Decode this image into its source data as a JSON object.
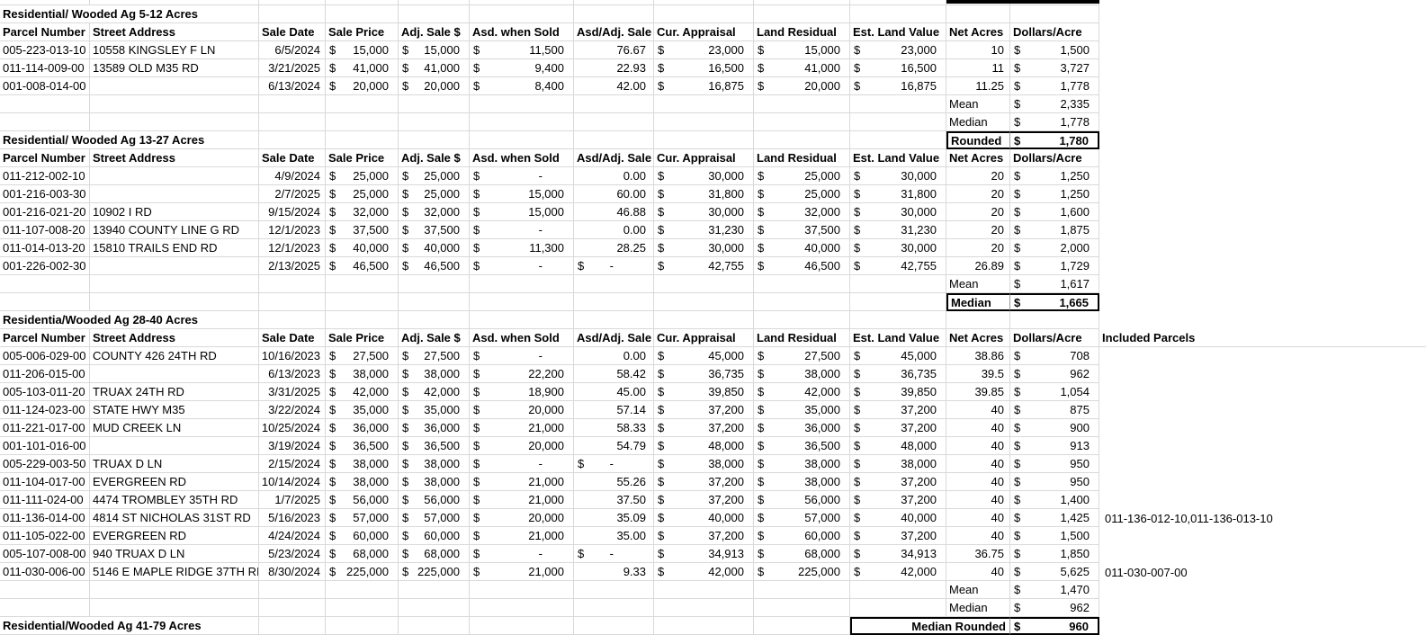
{
  "app": "spreadsheet-land-sales-analysis",
  "colors": {
    "background": "#ffffff",
    "gridline": "#d9d9d9",
    "text": "#000000",
    "summary_box_border": "#000000"
  },
  "grid": {
    "columns": [
      "Parcel Number",
      "Street Address",
      "Sale Date",
      "Sale Price",
      "Adj. Sale $",
      "Asd. when Sold",
      "Asd/Adj. Sale",
      "Cur. Appraisal",
      "Land Residual",
      "Est. Land Value",
      "Net Acres",
      "Dollars/Acre"
    ],
    "included_parcels_header": "Included Parcels",
    "rows": [
      {
        "t": "strip"
      },
      {
        "t": "title",
        "text": "Residential/ Wooded Ag 5-12 Acres"
      },
      {
        "t": "head",
        "included": false
      },
      {
        "t": "data",
        "c": [
          "005-223-013-10",
          "10558 KINGSLEY F LN",
          "6/5/2024",
          "15,000",
          "15,000",
          "11,500",
          "76.67",
          "23,000",
          "15,000",
          "23,000",
          "10",
          "1,500",
          ""
        ]
      },
      {
        "t": "data",
        "c": [
          "011-114-009-00",
          "13589 OLD M35 RD",
          "3/21/2025",
          "41,000",
          "41,000",
          "9,400",
          "22.93",
          "16,500",
          "41,000",
          "16,500",
          "11",
          "3,727",
          ""
        ]
      },
      {
        "t": "data",
        "c": [
          "001-008-014-00",
          "",
          "6/13/2024",
          "20,000",
          "20,000",
          "8,400",
          "42.00",
          "16,875",
          "20,000",
          "16,875",
          "11.25",
          "1,778",
          ""
        ]
      },
      {
        "t": "sum",
        "label": "Mean",
        "value": "2,335",
        "box": false
      },
      {
        "t": "sum",
        "label": "Median",
        "value": "1,778",
        "box": false
      },
      {
        "t": "title",
        "text": "Residential/ Wooded Ag 13-27 Acres",
        "box": {
          "label": "Rounded",
          "value": "1,780",
          "wide": false
        }
      },
      {
        "t": "head",
        "included": false
      },
      {
        "t": "data",
        "c": [
          "011-212-002-10",
          "",
          "4/9/2024",
          "25,000",
          "25,000",
          "-",
          "0.00",
          "30,000",
          "25,000",
          "30,000",
          "20",
          "1,250",
          ""
        ]
      },
      {
        "t": "data",
        "c": [
          "001-216-003-30",
          "",
          "2/7/2025",
          "25,000",
          "25,000",
          "15,000",
          "60.00",
          "31,800",
          "25,000",
          "31,800",
          "20",
          "1,250",
          ""
        ]
      },
      {
        "t": "data",
        "c": [
          "001-216-021-20",
          "10902 I RD",
          "9/15/2024",
          "32,000",
          "32,000",
          "15,000",
          "46.88",
          "30,000",
          "32,000",
          "30,000",
          "20",
          "1,600",
          ""
        ]
      },
      {
        "t": "data",
        "c": [
          "011-107-008-20",
          "13940 COUNTY LINE G RD",
          "12/1/2023",
          "37,500",
          "37,500",
          "-",
          "0.00",
          "31,230",
          "37,500",
          "31,230",
          "20",
          "1,875",
          ""
        ]
      },
      {
        "t": "data",
        "c": [
          "011-014-013-20",
          "15810 TRAILS END RD",
          "12/1/2023",
          "40,000",
          "40,000",
          "11,300",
          "28.25",
          "30,000",
          "40,000",
          "30,000",
          "20",
          "2,000",
          ""
        ]
      },
      {
        "t": "data",
        "c": [
          "001-226-002-30",
          "",
          "2/13/2025",
          "46,500",
          "46,500",
          "-",
          "$-",
          "42,755",
          "46,500",
          "42,755",
          "26.89",
          "1,729",
          ""
        ]
      },
      {
        "t": "sum",
        "label": "Mean",
        "value": "1,617",
        "box": false
      },
      {
        "t": "sum",
        "label": "Median",
        "value": "1,665",
        "box": true
      },
      {
        "t": "title",
        "text": "Residentia/Wooded Ag 28-40 Acres"
      },
      {
        "t": "head",
        "included": true
      },
      {
        "t": "data",
        "c": [
          "005-006-029-00",
          "COUNTY 426 24TH RD",
          "10/16/2023",
          "27,500",
          "27,500",
          "-",
          "0.00",
          "45,000",
          "27,500",
          "45,000",
          "38.86",
          "708",
          ""
        ]
      },
      {
        "t": "data",
        "c": [
          "011-206-015-00",
          "",
          "6/13/2023",
          "38,000",
          "38,000",
          "22,200",
          "58.42",
          "36,735",
          "38,000",
          "36,735",
          "39.5",
          "962",
          ""
        ]
      },
      {
        "t": "data",
        "c": [
          "005-103-011-20",
          "TRUAX 24TH RD",
          "3/31/2025",
          "42,000",
          "42,000",
          "18,900",
          "45.00",
          "39,850",
          "42,000",
          "39,850",
          "39.85",
          "1,054",
          ""
        ]
      },
      {
        "t": "data",
        "c": [
          "011-124-023-00",
          "STATE HWY M35",
          "3/22/2024",
          "35,000",
          "35,000",
          "20,000",
          "57.14",
          "37,200",
          "35,000",
          "37,200",
          "40",
          "875",
          ""
        ]
      },
      {
        "t": "data",
        "c": [
          "011-221-017-00",
          "MUD CREEK LN",
          "10/25/2024",
          "36,000",
          "36,000",
          "21,000",
          "58.33",
          "37,200",
          "36,000",
          "37,200",
          "40",
          "900",
          ""
        ]
      },
      {
        "t": "data",
        "c": [
          "001-101-016-00",
          "",
          "3/19/2024",
          "36,500",
          "36,500",
          "20,000",
          "54.79",
          "48,000",
          "36,500",
          "48,000",
          "40",
          "913",
          ""
        ]
      },
      {
        "t": "data",
        "c": [
          "005-229-003-50",
          "TRUAX D LN",
          "2/15/2024",
          "38,000",
          "38,000",
          "-",
          "$-",
          "38,000",
          "38,000",
          "38,000",
          "40",
          "950",
          ""
        ]
      },
      {
        "t": "data",
        "c": [
          "011-104-017-00",
          "EVERGREEN RD",
          "10/14/2024",
          "38,000",
          "38,000",
          "21,000",
          "55.26",
          "37,200",
          "38,000",
          "37,200",
          "40",
          "950",
          ""
        ]
      },
      {
        "t": "data",
        "c": [
          "011-111-024-00",
          "4474 TROMBLEY 35TH RD",
          "1/7/2025",
          "56,000",
          "56,000",
          "21,000",
          "37.50",
          "37,200",
          "56,000",
          "37,200",
          "40",
          "1,400",
          ""
        ]
      },
      {
        "t": "data",
        "c": [
          "011-136-014-00",
          "4814 ST NICHOLAS 31ST RD",
          "5/16/2023",
          "57,000",
          "57,000",
          "20,000",
          "35.09",
          "40,000",
          "57,000",
          "40,000",
          "40",
          "1,425",
          "011-136-012-10,011-136-013-10"
        ]
      },
      {
        "t": "data",
        "c": [
          "011-105-022-00",
          "EVERGREEN RD",
          "4/24/2024",
          "60,000",
          "60,000",
          "21,000",
          "35.00",
          "37,200",
          "60,000",
          "37,200",
          "40",
          "1,500",
          ""
        ]
      },
      {
        "t": "data",
        "c": [
          "005-107-008-00",
          "940 TRUAX D LN",
          "5/23/2024",
          "68,000",
          "68,000",
          "-",
          "$-",
          "34,913",
          "68,000",
          "34,913",
          "36.75",
          "1,850",
          ""
        ]
      },
      {
        "t": "data",
        "c": [
          "011-030-006-00",
          "5146 E MAPLE RIDGE 37TH RD",
          "8/30/2024",
          "225,000",
          "225,000",
          "21,000",
          "9.33",
          "42,000",
          "225,000",
          "42,000",
          "40",
          "5,625",
          "011-030-007-00"
        ]
      },
      {
        "t": "sum",
        "label": "Mean",
        "value": "1,470",
        "box": false
      },
      {
        "t": "sum",
        "label": "Median",
        "value": "962",
        "box": false
      },
      {
        "t": "title",
        "text": "Residential/Wooded Ag 41-79 Acres",
        "box": {
          "label": "Median Rounded",
          "value": "960",
          "wide": true
        }
      }
    ]
  }
}
